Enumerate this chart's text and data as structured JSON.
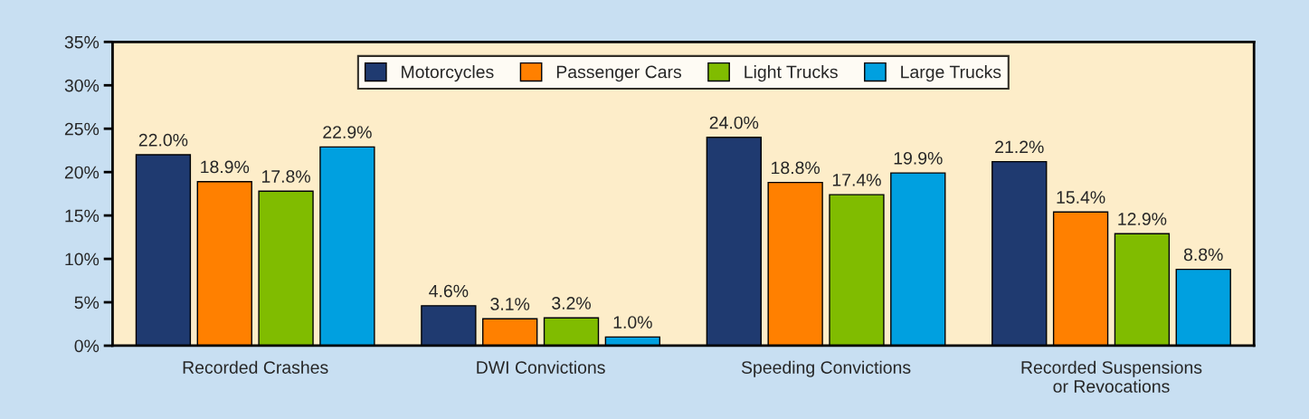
{
  "chart_data": {
    "type": "bar",
    "categories": [
      "Recorded Crashes",
      "DWI Convictions",
      "Speeding Convictions",
      "Recorded Suspensions\nor Revocations"
    ],
    "series": [
      {
        "name": "Motorcycles",
        "color": "#1f3a70",
        "values": [
          22.0,
          4.6,
          24.0,
          21.2
        ]
      },
      {
        "name": "Passenger Cars",
        "color": "#ff8000",
        "values": [
          18.9,
          3.1,
          18.8,
          15.4
        ]
      },
      {
        "name": "Light Trucks",
        "color": "#80bc00",
        "values": [
          17.8,
          3.2,
          17.4,
          12.9
        ]
      },
      {
        "name": "Large Trucks",
        "color": "#00a0e0",
        "values": [
          22.9,
          1.0,
          19.9,
          8.8
        ]
      }
    ],
    "value_labels": [
      [
        "22.0%",
        "4.6%",
        "24.0%",
        "21.2%"
      ],
      [
        "18.9%",
        "3.1%",
        "18.8%",
        "15.4%"
      ],
      [
        "17.8%",
        "3.2%",
        "17.4%",
        "12.9%"
      ],
      [
        "22.9%",
        "1.0%",
        "19.9%",
        "8.8%"
      ]
    ],
    "ylim": [
      0,
      35
    ],
    "yticks": [
      {
        "value": 0,
        "label": "0%"
      },
      {
        "value": 5,
        "label": "5%"
      },
      {
        "value": 10,
        "label": "10%"
      },
      {
        "value": 15,
        "label": "15%"
      },
      {
        "value": 20,
        "label": "20%"
      },
      {
        "value": 25,
        "label": "25%"
      },
      {
        "value": 30,
        "label": "30%"
      },
      {
        "value": 35,
        "label": "35%"
      }
    ],
    "grid": false,
    "legend": "top"
  }
}
